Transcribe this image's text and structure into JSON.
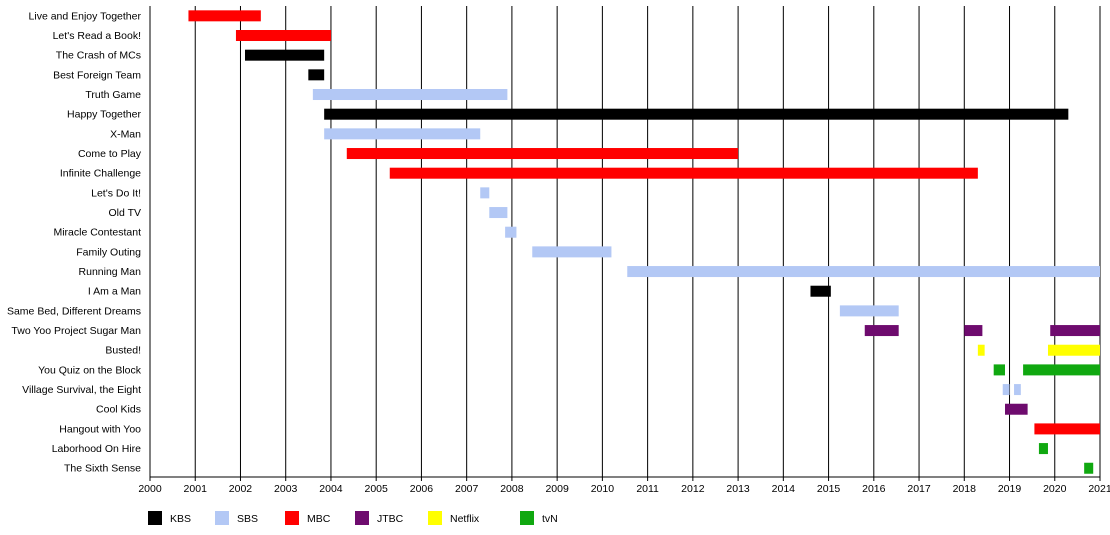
{
  "chart_data": {
    "type": "timeline",
    "title": "",
    "xlabel": "",
    "ylabel": "",
    "xlim": [
      2000,
      2021
    ],
    "x_ticks": [
      "2000",
      "2001",
      "2002",
      "2003",
      "2004",
      "2005",
      "2006",
      "2007",
      "2008",
      "2009",
      "2010",
      "2011",
      "2012",
      "2013",
      "2014",
      "2015",
      "2016",
      "2017",
      "2018",
      "2019",
      "2020",
      "2021"
    ],
    "grid": true,
    "legend_position": "bottom",
    "series": [
      {
        "name": "KBS",
        "color": "#000000"
      },
      {
        "name": "SBS",
        "color": "#b3c8f5"
      },
      {
        "name": "MBC",
        "color": "#ff0000"
      },
      {
        "name": "JTBC",
        "color": "#6e0b6e"
      },
      {
        "name": "Netflix",
        "color": "#ffff00"
      },
      {
        "name": "tvN",
        "color": "#10a810"
      }
    ],
    "rows": [
      {
        "label": "Live and Enjoy Together",
        "bars": [
          {
            "start": 2000.85,
            "end": 2002.45,
            "network": "MBC"
          }
        ]
      },
      {
        "label": "Let's Read a Book!",
        "bars": [
          {
            "start": 2001.9,
            "end": 2004.0,
            "network": "MBC"
          }
        ]
      },
      {
        "label": "The Crash of MCs",
        "bars": [
          {
            "start": 2002.1,
            "end": 2003.85,
            "network": "KBS"
          }
        ]
      },
      {
        "label": "Best Foreign Team",
        "bars": [
          {
            "start": 2003.5,
            "end": 2003.85,
            "network": "KBS"
          }
        ]
      },
      {
        "label": "Truth Game",
        "bars": [
          {
            "start": 2003.6,
            "end": 2007.9,
            "network": "SBS"
          }
        ]
      },
      {
        "label": "Happy Together",
        "bars": [
          {
            "start": 2003.85,
            "end": 2020.3,
            "network": "KBS"
          }
        ]
      },
      {
        "label": "X-Man",
        "bars": [
          {
            "start": 2003.85,
            "end": 2007.3,
            "network": "SBS"
          }
        ]
      },
      {
        "label": "Come to Play",
        "bars": [
          {
            "start": 2004.35,
            "end": 2013.0,
            "network": "MBC"
          }
        ]
      },
      {
        "label": "Infinite Challenge",
        "bars": [
          {
            "start": 2005.3,
            "end": 2018.3,
            "network": "MBC"
          }
        ]
      },
      {
        "label": "Let's Do It!",
        "bars": [
          {
            "start": 2007.3,
            "end": 2007.5,
            "network": "SBS"
          }
        ]
      },
      {
        "label": "Old TV",
        "bars": [
          {
            "start": 2007.5,
            "end": 2007.9,
            "network": "SBS"
          }
        ]
      },
      {
        "label": "Miracle Contestant",
        "bars": [
          {
            "start": 2007.85,
            "end": 2008.1,
            "network": "SBS"
          }
        ]
      },
      {
        "label": "Family Outing",
        "bars": [
          {
            "start": 2008.45,
            "end": 2010.2,
            "network": "SBS"
          }
        ]
      },
      {
        "label": "Running Man",
        "bars": [
          {
            "start": 2010.55,
            "end": 2021.0,
            "network": "SBS"
          }
        ]
      },
      {
        "label": "I Am a Man",
        "bars": [
          {
            "start": 2014.6,
            "end": 2015.05,
            "network": "KBS"
          }
        ]
      },
      {
        "label": "Same Bed, Different Dreams",
        "bars": [
          {
            "start": 2015.25,
            "end": 2016.55,
            "network": "SBS"
          }
        ]
      },
      {
        "label": "Two Yoo Project Sugar Man",
        "bars": [
          {
            "start": 2015.8,
            "end": 2016.55,
            "network": "JTBC"
          },
          {
            "start": 2018.0,
            "end": 2018.4,
            "network": "JTBC"
          },
          {
            "start": 2019.9,
            "end": 2021.0,
            "network": "JTBC"
          }
        ]
      },
      {
        "label": "Busted!",
        "bars": [
          {
            "start": 2018.3,
            "end": 2018.45,
            "network": "Netflix"
          },
          {
            "start": 2019.85,
            "end": 2021.0,
            "network": "Netflix"
          }
        ]
      },
      {
        "label": "You Quiz on the Block",
        "bars": [
          {
            "start": 2018.65,
            "end": 2018.9,
            "network": "tvN"
          },
          {
            "start": 2019.3,
            "end": 2021.0,
            "network": "tvN"
          }
        ]
      },
      {
        "label": "Village Survival, the Eight",
        "bars": [
          {
            "start": 2018.85,
            "end": 2019.0,
            "network": "SBS"
          },
          {
            "start": 2019.1,
            "end": 2019.25,
            "network": "SBS"
          }
        ]
      },
      {
        "label": "Cool Kids",
        "bars": [
          {
            "start": 2018.9,
            "end": 2019.4,
            "network": "JTBC"
          }
        ]
      },
      {
        "label": "Hangout with Yoo",
        "bars": [
          {
            "start": 2019.55,
            "end": 2021.0,
            "network": "MBC"
          }
        ]
      },
      {
        "label": "Laborhood On Hire",
        "bars": [
          {
            "start": 2019.65,
            "end": 2019.85,
            "network": "tvN"
          }
        ]
      },
      {
        "label": "The Sixth Sense",
        "bars": [
          {
            "start": 2020.65,
            "end": 2020.85,
            "network": "tvN"
          }
        ]
      }
    ]
  }
}
